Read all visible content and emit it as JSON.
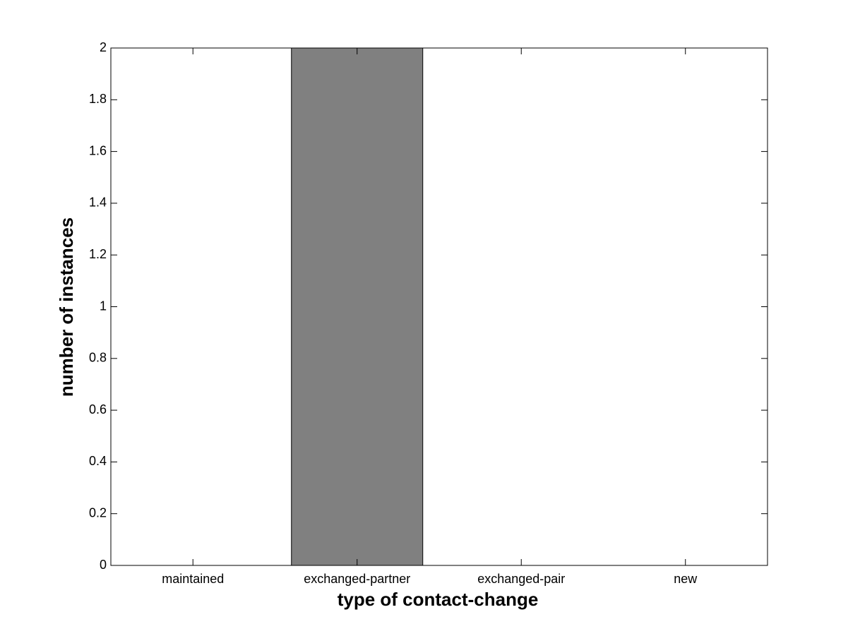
{
  "chart_data": {
    "type": "bar",
    "x_label": "type of contact-change",
    "y_label": "number of instances",
    "categories": [
      "maintained",
      "exchanged-partner",
      "exchanged-pair",
      "new"
    ],
    "values": [
      0,
      2,
      0,
      0
    ],
    "color": "#808080",
    "ylim": [
      0,
      2
    ],
    "yticks": [
      0,
      0.2,
      0.4,
      0.6,
      0.8,
      1,
      1.2,
      1.4,
      1.6,
      1.8,
      2
    ],
    "grid": false
  }
}
